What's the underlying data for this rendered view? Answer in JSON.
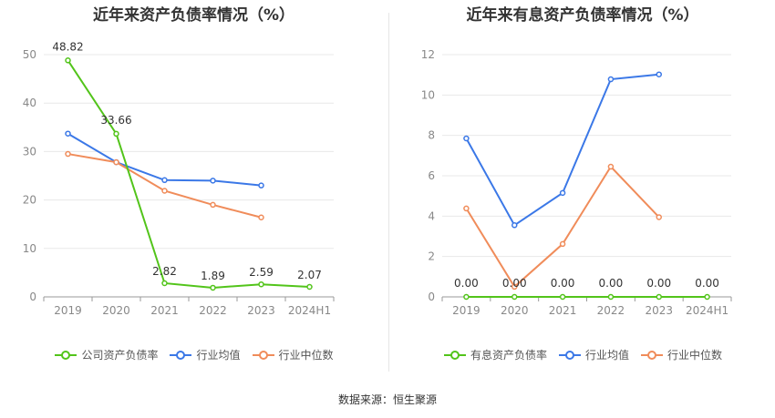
{
  "chart_data": [
    {
      "type": "line",
      "title": "近年来资产负债率情况（%）",
      "categories": [
        "2019",
        "2020",
        "2021",
        "2022",
        "2023",
        "2024H1"
      ],
      "ylim": [
        0,
        50
      ],
      "yticks": [
        0,
        10,
        20,
        30,
        40,
        50
      ],
      "grid": true,
      "legend_position": "bottom",
      "series": [
        {
          "name": "公司资产负债率",
          "color": "#52c41a",
          "values": [
            48.82,
            33.66,
            2.82,
            1.89,
            2.59,
            2.07
          ],
          "labels": [
            "48.82",
            "33.66",
            "2.82",
            "1.89",
            "2.59",
            "2.07"
          ]
        },
        {
          "name": "行业均值",
          "color": "#3b78e7",
          "values": [
            33.7,
            27.8,
            24.1,
            24.0,
            23.0,
            null
          ]
        },
        {
          "name": "行业中位数",
          "color": "#f08c5a",
          "values": [
            29.5,
            27.8,
            21.9,
            19.0,
            16.4,
            null
          ]
        }
      ]
    },
    {
      "type": "line",
      "title": "近年来有息资产负债率情况（%）",
      "categories": [
        "2019",
        "2020",
        "2021",
        "2022",
        "2023",
        "2024H1"
      ],
      "ylim": [
        0,
        12
      ],
      "yticks": [
        0,
        2,
        4,
        6,
        8,
        10,
        12
      ],
      "grid": true,
      "legend_position": "bottom",
      "series": [
        {
          "name": "有息资产负债率",
          "color": "#52c41a",
          "values": [
            0,
            0,
            0,
            0,
            0,
            0
          ],
          "labels": [
            "0.00",
            "0.00",
            "0.00",
            "0.00",
            "0.00",
            "0.00"
          ]
        },
        {
          "name": "行业均值",
          "color": "#3b78e7",
          "values": [
            7.85,
            3.55,
            5.15,
            10.78,
            11.02,
            null
          ]
        },
        {
          "name": "行业中位数",
          "color": "#f08c5a",
          "values": [
            4.38,
            0.5,
            2.62,
            6.45,
            3.95,
            null
          ]
        }
      ]
    }
  ],
  "source": "数据来源：恒生聚源"
}
